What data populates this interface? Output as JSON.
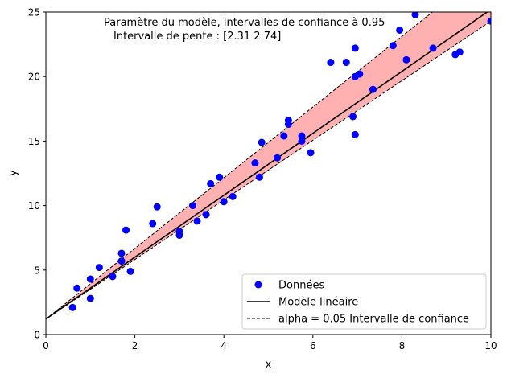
{
  "chart_data": {
    "type": "scatter",
    "xlabel": "x",
    "ylabel": "y",
    "xlim": [
      0,
      10
    ],
    "ylim": [
      0,
      25
    ],
    "xticks": [
      0,
      2,
      4,
      6,
      8,
      10
    ],
    "yticks": [
      0,
      5,
      10,
      15,
      20,
      25
    ],
    "annotation": {
      "line1": "Paramètre du modèle, intervalles de confiance à 0.95",
      "line2": "Intervalle de pente : [2.31 2.74]"
    },
    "legend": {
      "placement": "lower-right",
      "entries": [
        {
          "label": "Données",
          "kind": "marker"
        },
        {
          "label": "Modèle linéaire",
          "kind": "solid-line"
        },
        {
          "label": "alpha = 0.05 Intervalle de confiance",
          "kind": "dashed-line"
        }
      ]
    },
    "colors": {
      "points": "#0000ff",
      "model_line": "#000000",
      "band_fill": "#ffb0b0",
      "band_edge": "#000000"
    },
    "model": {
      "intercept": 1.2,
      "slope": 2.4
    },
    "confidence_band": {
      "intercept": 1.2,
      "slope_low": 2.31,
      "slope_high": 2.74
    },
    "series": [
      {
        "name": "Données",
        "points": [
          [
            0.6,
            2.1
          ],
          [
            0.7,
            3.6
          ],
          [
            1.0,
            4.3
          ],
          [
            1.0,
            2.8
          ],
          [
            1.2,
            5.2
          ],
          [
            1.5,
            4.5
          ],
          [
            1.7,
            5.7
          ],
          [
            1.7,
            6.3
          ],
          [
            1.8,
            8.1
          ],
          [
            1.9,
            4.9
          ],
          [
            2.4,
            8.6
          ],
          [
            2.5,
            9.9
          ],
          [
            3.0,
            7.7
          ],
          [
            3.0,
            8.0
          ],
          [
            3.3,
            10.0
          ],
          [
            3.4,
            8.8
          ],
          [
            3.6,
            9.3
          ],
          [
            3.7,
            11.7
          ],
          [
            3.9,
            12.2
          ],
          [
            4.0,
            10.3
          ],
          [
            4.2,
            10.7
          ],
          [
            4.7,
            13.3
          ],
          [
            4.8,
            12.2
          ],
          [
            4.85,
            14.9
          ],
          [
            5.2,
            13.7
          ],
          [
            5.35,
            15.4
          ],
          [
            5.45,
            16.3
          ],
          [
            5.45,
            16.6
          ],
          [
            5.75,
            15.0
          ],
          [
            5.75,
            15.4
          ],
          [
            5.95,
            14.1
          ],
          [
            6.4,
            21.1
          ],
          [
            6.75,
            21.1
          ],
          [
            6.9,
            16.9
          ],
          [
            6.95,
            15.5
          ],
          [
            6.95,
            20.0
          ],
          [
            6.95,
            22.2
          ],
          [
            7.05,
            20.2
          ],
          [
            7.35,
            19.0
          ],
          [
            7.8,
            22.4
          ],
          [
            7.95,
            23.6
          ],
          [
            8.1,
            21.3
          ],
          [
            8.3,
            24.8
          ],
          [
            8.7,
            22.2
          ],
          [
            9.2,
            21.7
          ],
          [
            9.3,
            21.9
          ],
          [
            10.0,
            24.3
          ]
        ]
      }
    ]
  }
}
